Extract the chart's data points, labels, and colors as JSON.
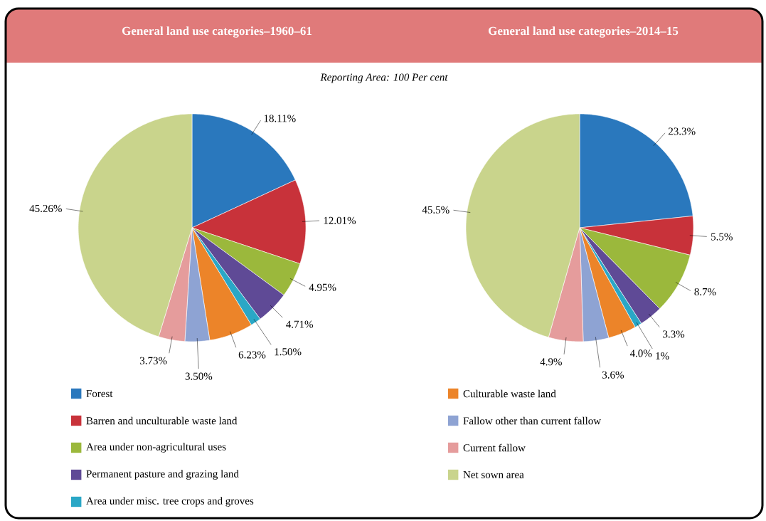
{
  "chart_data": [
    {
      "type": "pie",
      "title": "General land use categories–1960–61",
      "subtitle": "Reporting Area: 100 Per cent",
      "categories": [
        "Forest",
        "Barren and unculturable waste land",
        "Area under non-agricultural uses",
        "Permanent pasture and grazing land",
        "Area under misc. tree crops and groves",
        "Culturable waste land",
        "Fallow other than current fallow",
        "Current fallow",
        "Net sown area"
      ],
      "values": [
        18.11,
        12.01,
        4.95,
        4.71,
        1.5,
        6.23,
        3.5,
        3.73,
        45.26
      ],
      "value_labels": [
        "18.11%",
        "12.01%",
        "4.95%",
        "4.71%",
        "1.50%",
        "6.23%",
        "3.50%",
        "3.73%",
        "45.26%"
      ],
      "colors": [
        "#2a78bd",
        "#c8323a",
        "#9bb83c",
        "#5f4a96",
        "#2aa7c6",
        "#ec8429",
        "#8ea3d3",
        "#e59c9c",
        "#c9d48c"
      ],
      "legend": "bottom"
    },
    {
      "type": "pie",
      "title": "General land use categories–2014–15",
      "categories": [
        null,
        null,
        null,
        null,
        null,
        null,
        null,
        null,
        null
      ],
      "values": [
        23.3,
        5.5,
        8.7,
        3.3,
        1,
        4.0,
        3.6,
        4.9,
        45.5
      ],
      "value_labels": [
        "23.3%",
        "5.5%",
        "8.7%",
        "3.3%",
        "1%",
        "4.0%",
        "3.6%",
        "4.9%",
        "45.5%"
      ],
      "colors": [
        "#2a78bd",
        "#c8323a",
        "#9bb83c",
        "#5f4a96",
        "#2aa7c6",
        "#ec8429",
        "#8ea3d3",
        "#e59c9c",
        "#c9d48c"
      ]
    }
  ]
}
